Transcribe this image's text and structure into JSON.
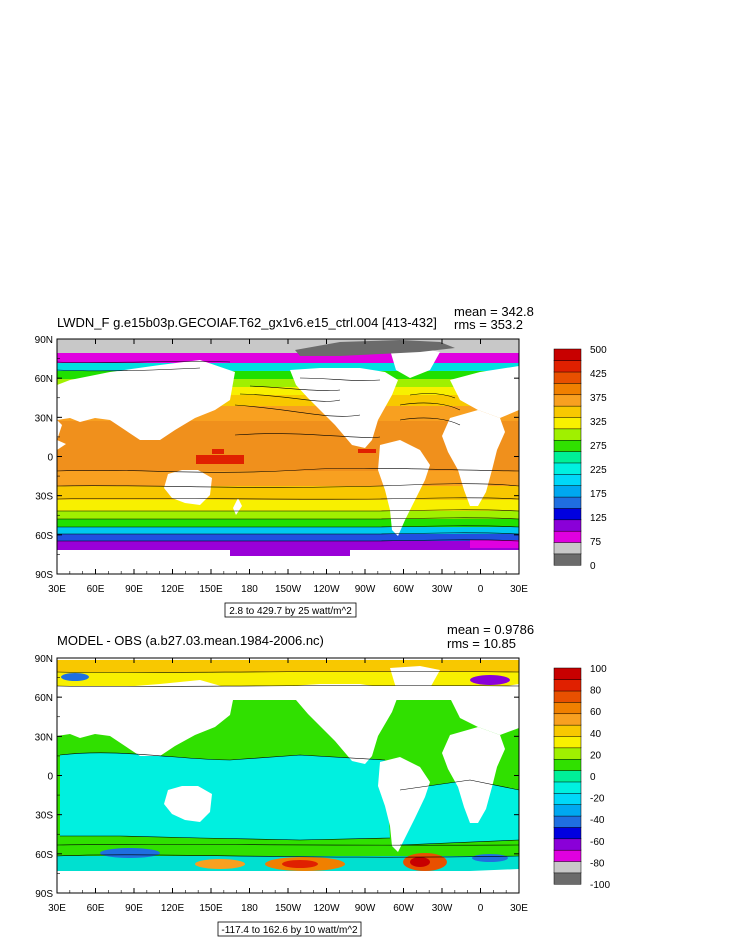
{
  "chart_data": [
    {
      "type": "heatmap",
      "title": "LWDN_F g.e15b03p.GECOIAF.T62_gx1v6.e15_ctrl.004 [413-432]",
      "stats": {
        "mean": "mean = 342.8",
        "rms": "rms = 353.2"
      },
      "x_ticks": [
        "30E",
        "60E",
        "90E",
        "120E",
        "150E",
        "180",
        "150W",
        "120W",
        "90W",
        "60W",
        "30W",
        "0",
        "30E"
      ],
      "y_ticks": [
        "90N",
        "60N",
        "30N",
        "0",
        "30S",
        "60S",
        "90S"
      ],
      "range_note": "2.8 to 429.7 by 25 watt/m^2",
      "colorbar": {
        "labels": [
          "500",
          "425",
          "375",
          "325",
          "275",
          "225",
          "175",
          "125",
          "75",
          "0"
        ],
        "levels": [
          0,
          25,
          50,
          75,
          100,
          125,
          150,
          175,
          200,
          225,
          250,
          275,
          300,
          325,
          350,
          375,
          400,
          425,
          450,
          475,
          500
        ],
        "colors": [
          "#6b6b6b",
          "#c8c8c8",
          "#e000e0",
          "#8a00d8",
          "#0000e0",
          "#1f6fe0",
          "#00a8f0",
          "#00d8f8",
          "#00f0e0",
          "#00f098",
          "#30e000",
          "#a0f000",
          "#f8f000",
          "#f8c800",
          "#f8a020",
          "#f08000",
          "#e85000",
          "#e02000",
          "#c80000"
        ]
      },
      "grid": false
    },
    {
      "type": "heatmap",
      "title": "MODEL - OBS (a.b27.03.mean.1984-2006.nc)",
      "stats": {
        "mean": "mean = 0.9786",
        "rms": "rms = 10.85"
      },
      "x_ticks": [
        "30E",
        "60E",
        "90E",
        "120E",
        "150E",
        "180",
        "150W",
        "120W",
        "90W",
        "60W",
        "30W",
        "0",
        "30E"
      ],
      "y_ticks": [
        "90N",
        "60N",
        "30N",
        "0",
        "30S",
        "60S",
        "90S"
      ],
      "range_note": "-117.4 to 162.6 by 10 watt/m^2",
      "colorbar": {
        "labels": [
          "100",
          "80",
          "60",
          "40",
          "20",
          "0",
          "-20",
          "-40",
          "-60",
          "-80",
          "-100"
        ],
        "levels": [
          -100,
          -90,
          -80,
          -70,
          -60,
          -50,
          -40,
          -30,
          -20,
          -10,
          0,
          10,
          20,
          30,
          40,
          50,
          60,
          70,
          80,
          90,
          100
        ],
        "colors": [
          "#6b6b6b",
          "#c8c8c8",
          "#e000e0",
          "#8a00d8",
          "#0000e0",
          "#1f6fe0",
          "#00a8f0",
          "#00d8f8",
          "#00f0e0",
          "#00f098",
          "#30e000",
          "#a0f000",
          "#f8f000",
          "#f8c800",
          "#f8a020",
          "#f08000",
          "#e85000",
          "#e02000",
          "#c80000"
        ]
      },
      "grid": false
    }
  ]
}
